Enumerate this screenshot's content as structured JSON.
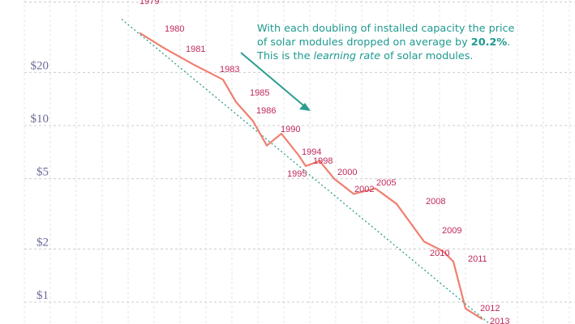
{
  "annotation": {
    "part1": "With each doubling of installed capacity the price of solar modules dropped on average by ",
    "rate": "20.2%",
    "part2": ". This is the ",
    "term": "learning rate",
    "part3": " of solar modules."
  },
  "colors": {
    "price_line": "#f07f6f",
    "year_labels": "#c0295a",
    "trend_line": "#2a9d8f",
    "arrow": "#2a9d8f",
    "annotation_text": "#1e9a8f",
    "axis_text": "#6b6b9a",
    "grid": "#cccccc"
  },
  "chart_data": {
    "type": "line",
    "yscale": "log",
    "yticks": [
      {
        "value": 1,
        "label": "$1"
      },
      {
        "value": 2,
        "label": "$2"
      },
      {
        "value": 5,
        "label": "$5"
      },
      {
        "value": 10,
        "label": "$10"
      },
      {
        "value": 20,
        "label": "$20"
      }
    ],
    "series": [
      {
        "points": [
          {
            "year": "1979",
            "label_text": "1979",
            "price": 33.5
          },
          {
            "year": "1980",
            "label_text": "1980",
            "price": 27.5
          },
          {
            "year": "1981",
            "label_text": "1981",
            "price": 22.0
          },
          {
            "year": "1983",
            "label_text": "1983",
            "price": 18.2
          },
          {
            "year": "1985",
            "label_text": "1985",
            "price": 13.6
          },
          {
            "year": "1986",
            "label_text": "1986",
            "price": 10.6
          },
          {
            "year": "",
            "label_text": "",
            "price": 7.7
          },
          {
            "year": "1990",
            "label_text": "1990",
            "price": 9.0
          },
          {
            "year": "1994",
            "label_text": "1994",
            "price": 6.8
          },
          {
            "year": "1995",
            "label_text": "1995",
            "price": 5.9
          },
          {
            "year": "1998",
            "label_text": "1998",
            "price": 6.3
          },
          {
            "year": "2000",
            "label_text": "2000",
            "price": 5.0
          },
          {
            "year": "2002",
            "label_text": "2002",
            "price": 4.1
          },
          {
            "year": "2005",
            "label_text": "2005",
            "price": 4.4
          },
          {
            "year": "2008",
            "label_text": "2008",
            "price": 3.6
          },
          {
            "year": "2009",
            "label_text": "2009",
            "price": 2.2
          },
          {
            "year": "2010",
            "label_text": "2010",
            "price": 1.95
          },
          {
            "year": "2011",
            "label_text": "2011",
            "price": 1.7
          },
          {
            "year": "2012",
            "label_text": "2012",
            "price": 0.92
          },
          {
            "year": "2013",
            "label_text": "2013",
            "price": 0.8
          }
        ]
      }
    ],
    "trend_line": {
      "start_price": 40,
      "end_price": 0.7
    },
    "grid": true
  }
}
